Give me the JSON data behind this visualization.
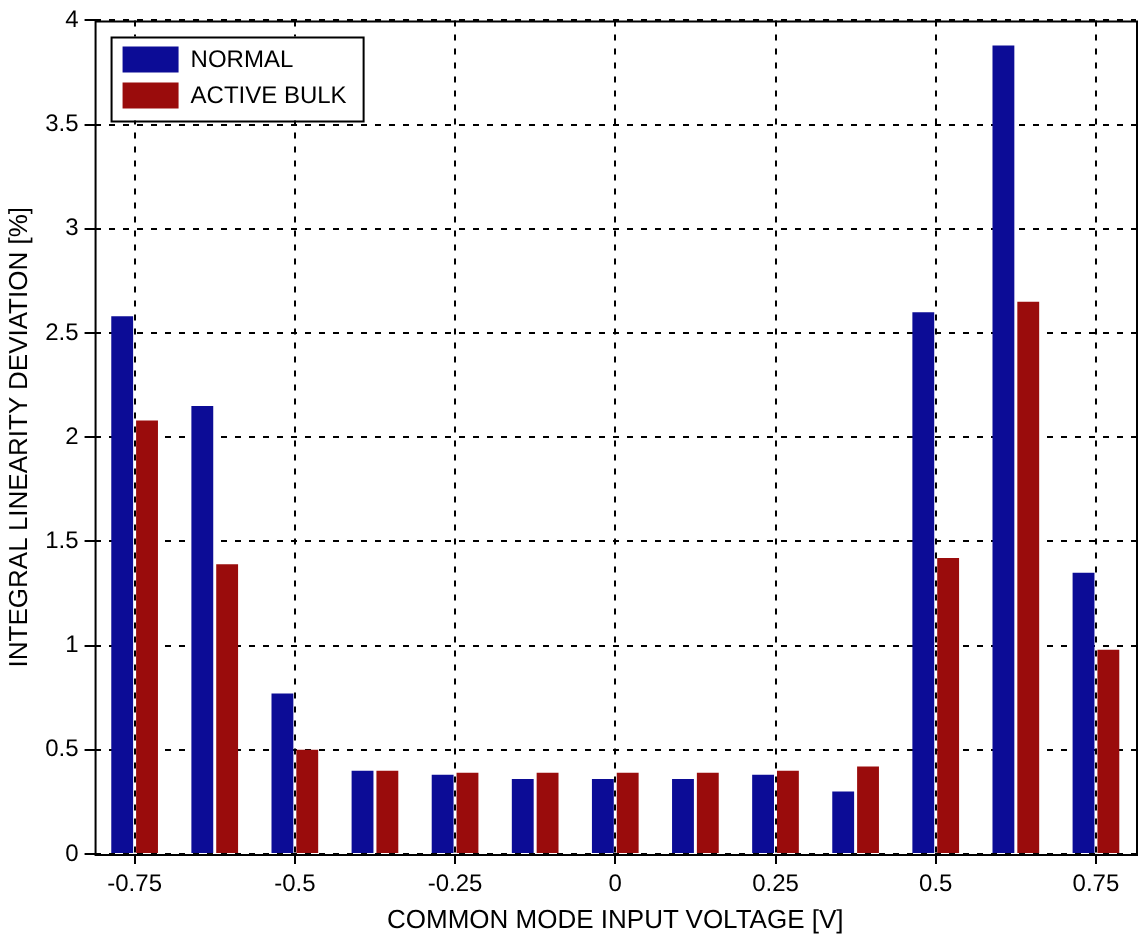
{
  "chart_data": {
    "type": "bar",
    "xlabel": "COMMON MODE INPUT VOLTAGE [V]",
    "ylabel": "INTEGRAL LINEARITY DEVIATION [%]",
    "categories": [
      "-0.75",
      null,
      "-0.5",
      null,
      "-0.25",
      null,
      "0",
      null,
      "0.25",
      null,
      "0.5",
      null,
      "0.75"
    ],
    "series": [
      {
        "name": "NORMAL",
        "color": "#0c0c96",
        "values": [
          2.58,
          2.15,
          0.77,
          0.4,
          0.38,
          0.36,
          0.36,
          0.36,
          0.38,
          0.3,
          2.6,
          3.88,
          1.35
        ]
      },
      {
        "name": "ACTIVE BULK",
        "color": "#9a0c0c",
        "values": [
          2.08,
          1.39,
          0.5,
          0.4,
          0.39,
          0.39,
          0.39,
          0.39,
          0.4,
          0.42,
          1.42,
          2.65,
          0.98
        ]
      }
    ],
    "ylim": [
      0,
      4
    ],
    "yticks": [
      0,
      0.5,
      1,
      1.5,
      2,
      2.5,
      3,
      3.5,
      4
    ],
    "grid": true,
    "legend": "top left"
  }
}
